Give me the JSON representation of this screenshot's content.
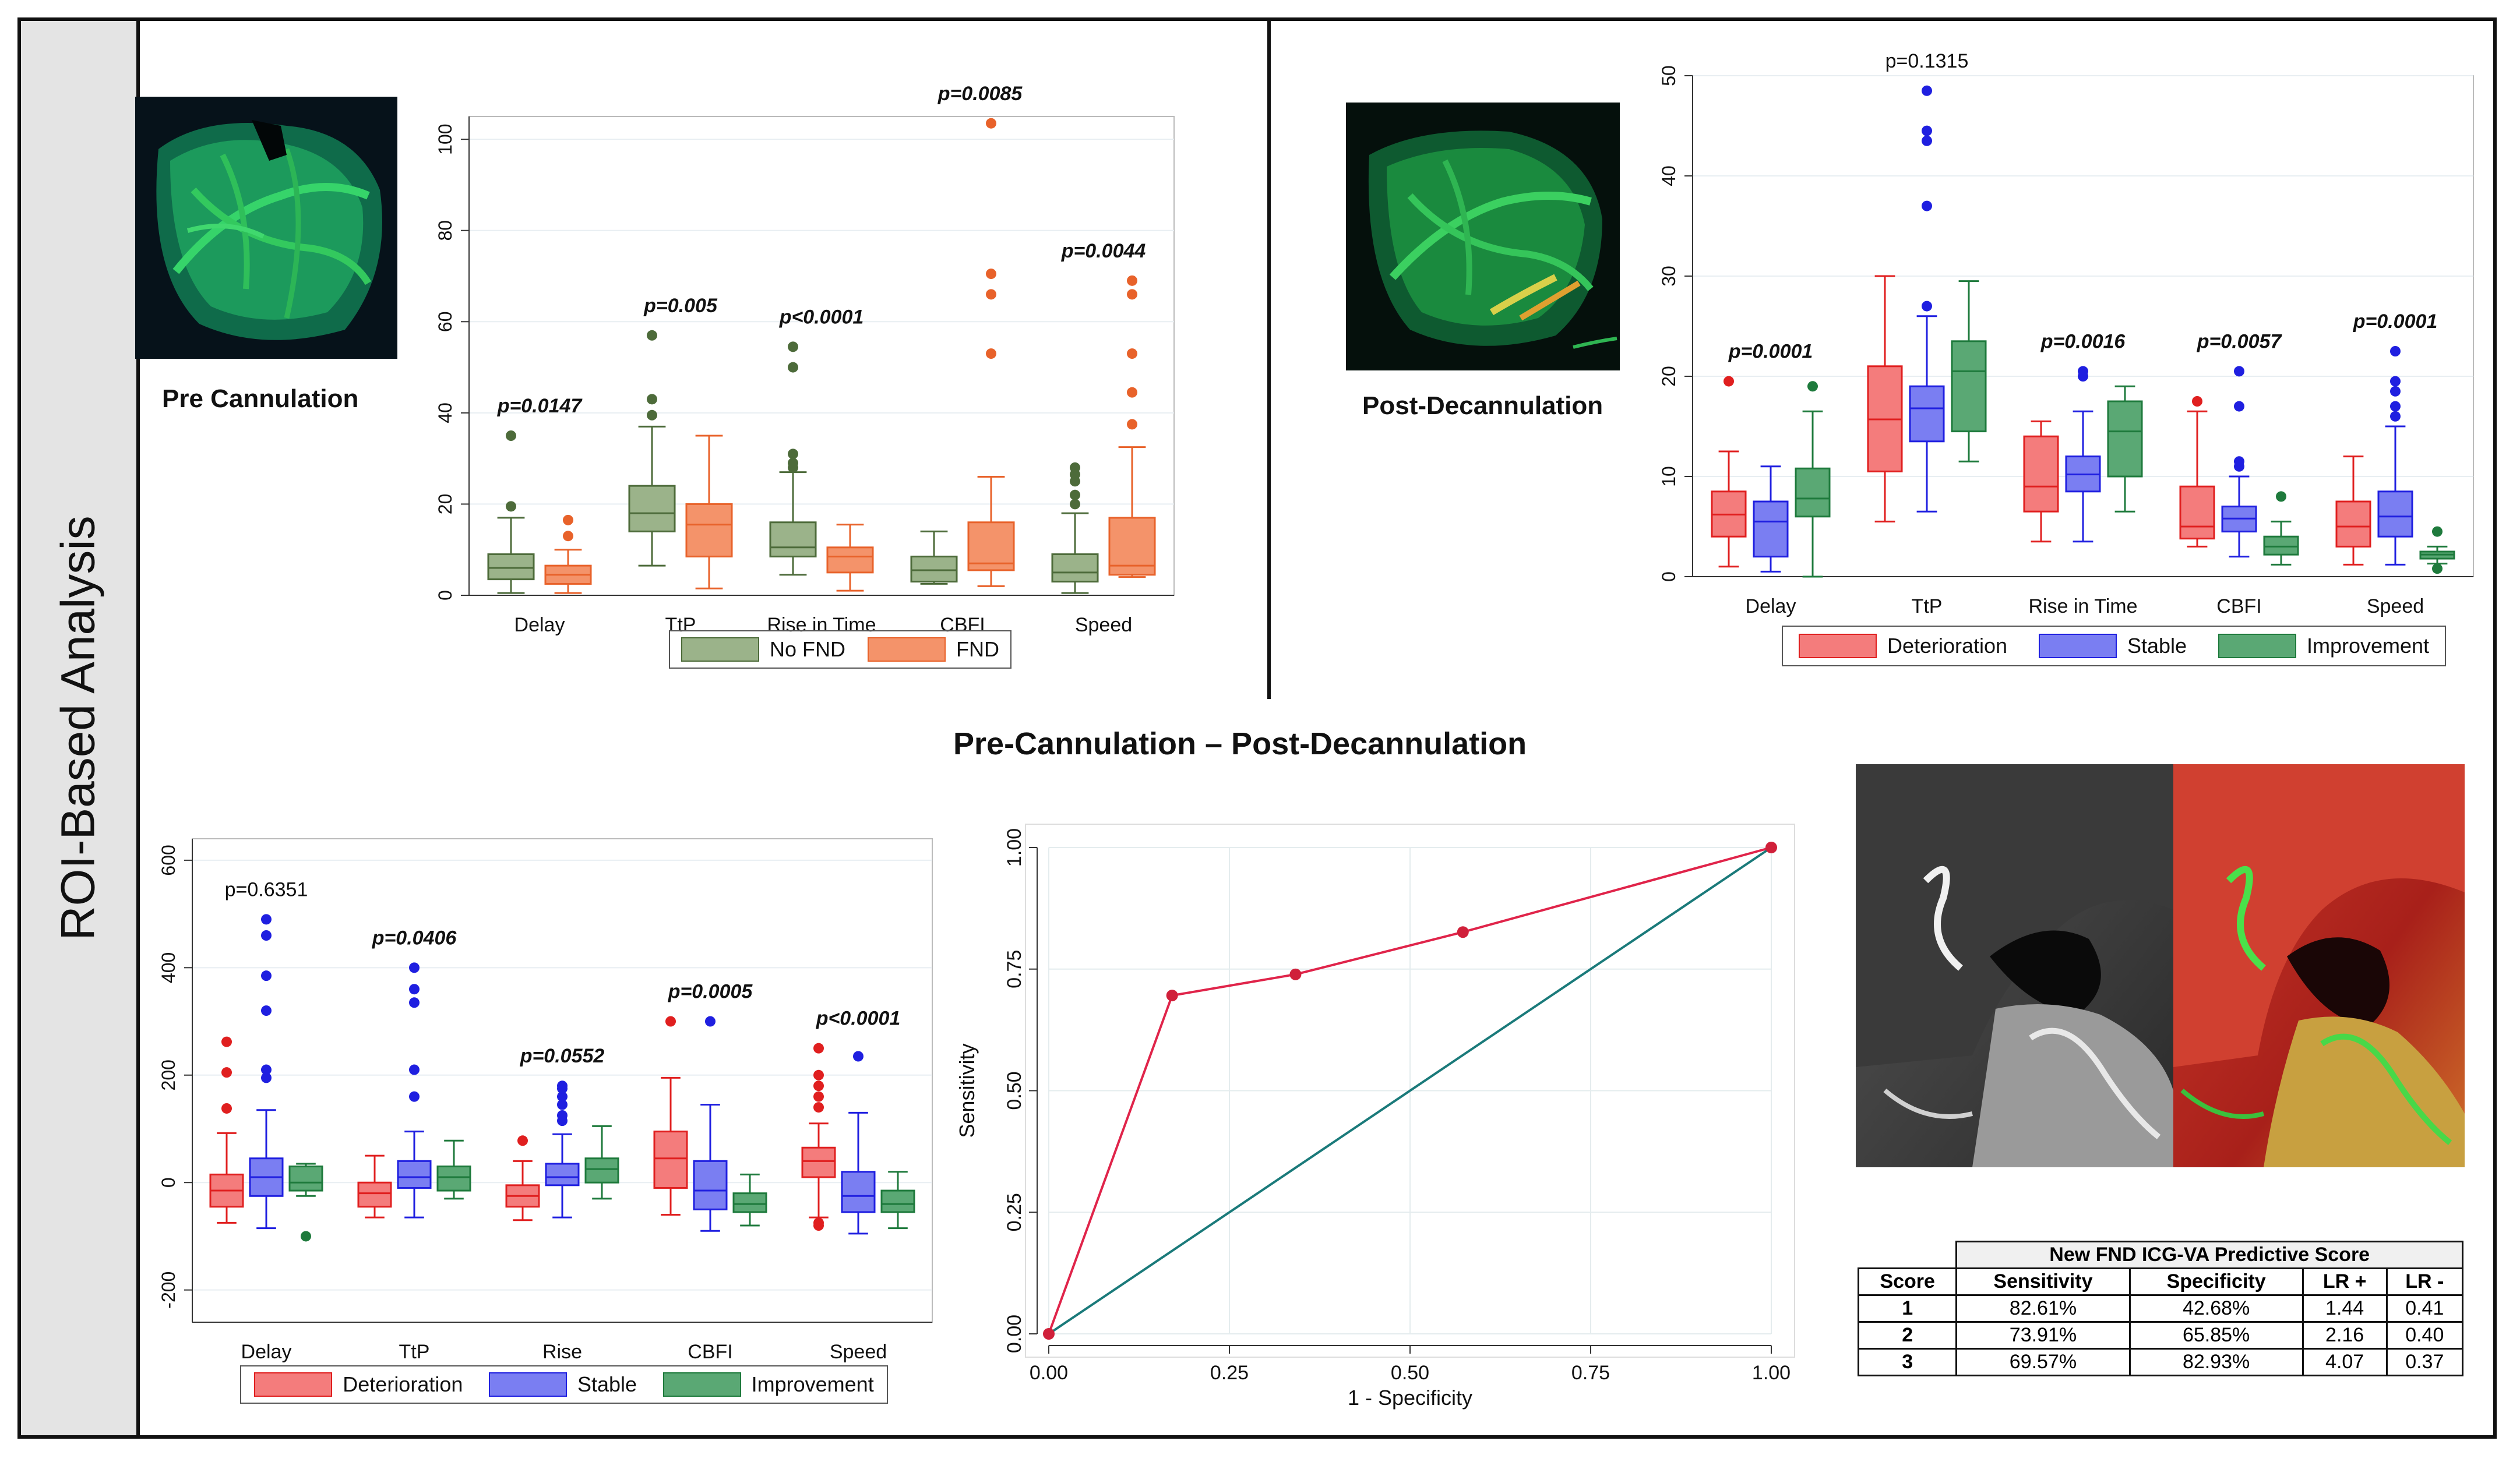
{
  "sidebar_label": "ROI-Based Analysis",
  "middle_title": "Pre-Cannulation – Post-Decannulation",
  "captions": {
    "pre": "Pre Cannulation",
    "post": "Post-Decannulation"
  },
  "colors": {
    "no_fnd": "#9bb38a",
    "fnd": "#f4936a",
    "deterioration": "#f47c7c",
    "stable": "#7a7ef2",
    "improvement": "#5aa874",
    "no_fnd_line": "#4d6b3a",
    "fnd_line": "#e8622a",
    "deterioration_line": "#e01f1f",
    "stable_line": "#1f1fe0",
    "improvement_line": "#1e7a3c"
  },
  "icons": [
    "pre-cannulation-icg-image",
    "post-decannulation-icg-image",
    "intraoperative-icg-overlay-image"
  ],
  "chart_data": [
    {
      "type": "box",
      "id": "pre-cannulation",
      "ylim": [
        0,
        105
      ],
      "yticks": [
        0,
        20,
        40,
        60,
        80,
        100
      ],
      "categories": [
        "Delay",
        "TtP",
        "Rise in Time",
        "CBFI",
        "Speed"
      ],
      "pvalues": [
        "p=0.0147",
        "p=0.005",
        "p<0.0001",
        "p=0.0085",
        "p=0.0044"
      ],
      "series": [
        {
          "name": "No FND",
          "boxes": [
            {
              "min": 0.5,
              "q1": 3.5,
              "med": 6,
              "q3": 9,
              "max": 17,
              "out": [
                19.5,
                35
              ]
            },
            {
              "min": 6.5,
              "q1": 14,
              "med": 18,
              "q3": 24,
              "max": 37,
              "out": [
                39.5,
                43,
                57
              ]
            },
            {
              "min": 4.5,
              "q1": 8.5,
              "med": 10.5,
              "q3": 16,
              "max": 27,
              "out": [
                28,
                29,
                31,
                50,
                54.5
              ]
            },
            {
              "min": 2.5,
              "q1": 3,
              "med": 5.5,
              "q3": 8.5,
              "max": 14,
              "out": []
            },
            {
              "min": 0.5,
              "q1": 3,
              "med": 5,
              "q3": 9,
              "max": 18,
              "out": [
                20,
                22,
                25,
                26.5,
                28
              ]
            }
          ]
        },
        {
          "name": "FND",
          "boxes": [
            {
              "min": 0.5,
              "q1": 2.5,
              "med": 4.5,
              "q3": 6.5,
              "max": 10,
              "out": [
                13,
                16.5
              ]
            },
            {
              "min": 1.5,
              "q1": 8.5,
              "med": 15.5,
              "q3": 20,
              "max": 35,
              "out": []
            },
            {
              "min": 1,
              "q1": 5,
              "med": 8.5,
              "q3": 10.5,
              "max": 15.5,
              "out": []
            },
            {
              "min": 2,
              "q1": 5.5,
              "med": 7,
              "q3": 16,
              "max": 26,
              "out": [
                53,
                66,
                70.5,
                103.5
              ]
            },
            {
              "min": 4,
              "q1": 4.5,
              "med": 6.5,
              "q3": 17,
              "max": 32.5,
              "out": [
                37.5,
                44.5,
                53,
                66,
                69
              ]
            }
          ]
        }
      ]
    },
    {
      "type": "box",
      "id": "post-decannulation",
      "ylim": [
        0,
        50
      ],
      "yticks": [
        0,
        10,
        20,
        30,
        40,
        50
      ],
      "categories": [
        "Delay",
        "TtP",
        "Rise in Time",
        "CBFI",
        "Speed"
      ],
      "pvalues": [
        "p=0.0001",
        "p=0.1315",
        "p=0.0016",
        "p=0.0057",
        "p=0.0001"
      ],
      "series": [
        {
          "name": "Deterioration",
          "boxes": [
            {
              "min": 1,
              "q1": 4,
              "med": 6.2,
              "q3": 8.5,
              "max": 12.5,
              "out": [
                19.5
              ]
            },
            {
              "min": 5.5,
              "q1": 10.5,
              "med": 15.7,
              "q3": 21,
              "max": 30,
              "out": []
            },
            {
              "min": 3.5,
              "q1": 6.5,
              "med": 9,
              "q3": 14,
              "max": 15.5,
              "out": []
            },
            {
              "min": 3,
              "q1": 3.8,
              "med": 5,
              "q3": 9,
              "max": 16.5,
              "out": [
                17.5
              ]
            },
            {
              "min": 1.2,
              "q1": 3,
              "med": 5,
              "q3": 7.5,
              "max": 12,
              "out": []
            }
          ]
        },
        {
          "name": "Stable",
          "boxes": [
            {
              "min": 0.5,
              "q1": 2,
              "med": 5.5,
              "q3": 7.5,
              "max": 11,
              "out": []
            },
            {
              "min": 6.5,
              "q1": 13.5,
              "med": 16.8,
              "q3": 19,
              "max": 26,
              "out": [
                27,
                37,
                43.5,
                44.5,
                48.5
              ]
            },
            {
              "min": 3.5,
              "q1": 8.5,
              "med": 10.2,
              "q3": 12,
              "max": 16.5,
              "out": [
                20,
                20.5
              ]
            },
            {
              "min": 2,
              "q1": 4.5,
              "med": 5.8,
              "q3": 7,
              "max": 10,
              "out": [
                11,
                11.5,
                17,
                20.5
              ]
            },
            {
              "min": 1.2,
              "q1": 4,
              "med": 6,
              "q3": 8.5,
              "max": 15,
              "out": [
                16,
                17,
                18.5,
                19.5,
                22.5
              ]
            }
          ]
        },
        {
          "name": "Improvement",
          "boxes": [
            {
              "min": 0,
              "q1": 6,
              "med": 7.8,
              "q3": 10.8,
              "max": 16.5,
              "out": [
                19
              ]
            },
            {
              "min": 11.5,
              "q1": 14.5,
              "med": 20.5,
              "q3": 23.5,
              "max": 29.5,
              "out": []
            },
            {
              "min": 6.5,
              "q1": 10,
              "med": 14.5,
              "q3": 17.5,
              "max": 19,
              "out": []
            },
            {
              "min": 1.2,
              "q1": 2.2,
              "med": 3,
              "q3": 4,
              "max": 5.5,
              "out": [
                8
              ]
            },
            {
              "min": 1.3,
              "q1": 1.8,
              "med": 2.2,
              "q3": 2.5,
              "max": 3,
              "out": [
                0.8,
                4.5
              ]
            }
          ]
        }
      ]
    },
    {
      "type": "box",
      "id": "pre-post-difference",
      "ylim": [
        -260,
        640
      ],
      "yticks": [
        -200,
        0,
        200,
        400,
        600
      ],
      "categories": [
        "Delay",
        "TtP",
        "Rise",
        "CBFI",
        "Speed"
      ],
      "pvalues": [
        "p=0.6351",
        "p=0.0406",
        "p=0.0552",
        "p=0.0005",
        "p<0.0001"
      ],
      "series": [
        {
          "name": "Deterioration",
          "boxes": [
            {
              "min": -75,
              "q1": -45,
              "med": -15,
              "q3": 15,
              "max": 92,
              "out": [
                138,
                205,
                262
              ]
            },
            {
              "min": -65,
              "q1": -45,
              "med": -20,
              "q3": 0,
              "max": 50,
              "out": []
            },
            {
              "min": -70,
              "q1": -45,
              "med": -25,
              "q3": -5,
              "max": 40,
              "out": [
                78
              ]
            },
            {
              "min": -60,
              "q1": -10,
              "med": 45,
              "q3": 95,
              "max": 195,
              "out": [
                300
              ]
            },
            {
              "min": -65,
              "q1": 10,
              "med": 40,
              "q3": 65,
              "max": 110,
              "out": [
                -80,
                -75,
                140,
                160,
                180,
                200,
                250
              ]
            }
          ]
        },
        {
          "name": "Stable",
          "boxes": [
            {
              "min": -85,
              "q1": -25,
              "med": 10,
              "q3": 45,
              "max": 135,
              "out": [
                195,
                210,
                320,
                385,
                460,
                490
              ]
            },
            {
              "min": -65,
              "q1": -10,
              "med": 10,
              "q3": 40,
              "max": 95,
              "out": [
                160,
                210,
                335,
                360,
                400
              ]
            },
            {
              "min": -65,
              "q1": -5,
              "med": 10,
              "q3": 35,
              "max": 90,
              "out": [
                115,
                125,
                145,
                160,
                175,
                180
              ]
            },
            {
              "min": -90,
              "q1": -50,
              "med": -15,
              "q3": 40,
              "max": 145,
              "out": [
                300
              ]
            },
            {
              "min": -95,
              "q1": -55,
              "med": -25,
              "q3": 20,
              "max": 130,
              "out": [
                235
              ]
            }
          ]
        },
        {
          "name": "Improvement",
          "boxes": [
            {
              "min": -25,
              "q1": -15,
              "med": 0,
              "q3": 30,
              "max": 35,
              "out": [
                -100
              ]
            },
            {
              "min": -30,
              "q1": -15,
              "med": 10,
              "q3": 30,
              "max": 78,
              "out": []
            },
            {
              "min": -30,
              "q1": 0,
              "med": 25,
              "q3": 45,
              "max": 105,
              "out": []
            },
            {
              "min": -80,
              "q1": -55,
              "med": -40,
              "q3": -20,
              "max": 15,
              "out": []
            },
            {
              "min": -85,
              "q1": -55,
              "med": -40,
              "q3": -15,
              "max": 20,
              "out": []
            }
          ]
        }
      ]
    },
    {
      "type": "line",
      "id": "roc-curve",
      "xlabel": "1 - Specificity",
      "ylabel": "Sensitivity",
      "xlim": [
        0,
        1
      ],
      "ylim": [
        0,
        1
      ],
      "xticks": [
        "0.00",
        "0.25",
        "0.50",
        "0.75",
        "1.00"
      ],
      "yticks": [
        "0.00",
        "0.25",
        "0.50",
        "0.75",
        "1.00"
      ],
      "roc": {
        "x": [
          0,
          0.1707,
          0.3415,
          0.5732,
          1
        ],
        "y": [
          0,
          0.6957,
          0.7391,
          0.8261,
          1
        ]
      },
      "reference": {
        "x": [
          0,
          1
        ],
        "y": [
          0,
          1
        ]
      }
    }
  ],
  "table": {
    "title": "New FND ICG-VA Predictive Score",
    "headers": [
      "Score",
      "Sensitivity",
      "Specificity",
      "LR +",
      "LR -"
    ],
    "rows": [
      [
        "1",
        "82.61%",
        "42.68%",
        "1.44",
        "0.41"
      ],
      [
        "2",
        "73.91%",
        "65.85%",
        "2.16",
        "0.40"
      ],
      [
        "3",
        "69.57%",
        "82.93%",
        "4.07",
        "0.37"
      ]
    ]
  }
}
